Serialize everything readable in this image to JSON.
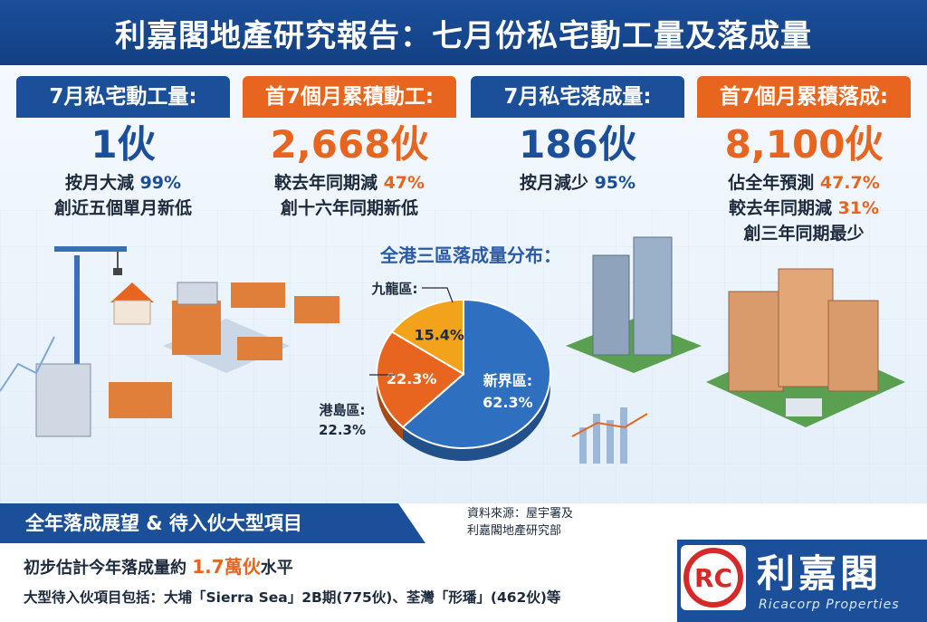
{
  "header": {
    "title": "利嘉閣地產研究報告：七月份私宅動工量及落成量"
  },
  "cards": [
    {
      "title": "7月私宅動工量:",
      "value": "1伙",
      "lines": [
        {
          "text": "按月大減 ",
          "hl": "99%"
        },
        {
          "text": "創近五個單月新低",
          "hl": ""
        }
      ]
    },
    {
      "title": "首7個月累積動工:",
      "value": "2,668伙",
      "lines": [
        {
          "text": "較去年同期減 ",
          "hl": "47%"
        },
        {
          "text": "創十六年同期新低",
          "hl": ""
        }
      ]
    },
    {
      "title": "7月私宅落成量:",
      "value": "186伙",
      "lines": [
        {
          "text": "按月減少 ",
          "hl": "95%"
        }
      ]
    },
    {
      "title": "首7個月累積落成:",
      "value": "8,100伙",
      "lines": [
        {
          "text": "佔全年預測 ",
          "hl": "47.7%"
        },
        {
          "text": "較去年同期減 ",
          "hl": "31%"
        },
        {
          "text": "創三年同期最少",
          "hl": ""
        }
      ]
    }
  ],
  "chart_data": {
    "type": "pie",
    "title": "全港三區落成量分布：",
    "slices": [
      {
        "name": "新界區",
        "value": 62.3,
        "label": "新界區:",
        "pct": "62.3%",
        "color": "#2f6fbf"
      },
      {
        "name": "港島區",
        "value": 22.3,
        "label": "港島區:",
        "pct": "22.3%",
        "color": "#e8651f"
      },
      {
        "name": "九龍區",
        "value": 15.4,
        "label": "九龍區:",
        "pct": "15.4%",
        "color": "#f2a21b"
      }
    ],
    "legend": [
      "新界區：62.3%",
      "港島區：22.3%",
      "九龍區：15.4%"
    ],
    "legend_position": "bottom"
  },
  "bottom": {
    "band_title": "全年落成展望 & 待入伙大型項目",
    "source_line1": "資料來源：屋宇署及",
    "source_line2": "利嘉閣地產研究部",
    "outlook1_pre": "初步估計今年落成量約 ",
    "outlook1_hl": "1.7萬伙",
    "outlook1_post": "水平",
    "outlook2": "大型待入伙項目包括：大埔「Sierra Sea」2B期(775伙)、荃灣「形璠」(462伙)等"
  },
  "brand": {
    "name": "利嘉閣",
    "sub": "Ricacorp Properties",
    "logo_letters": "RC"
  }
}
